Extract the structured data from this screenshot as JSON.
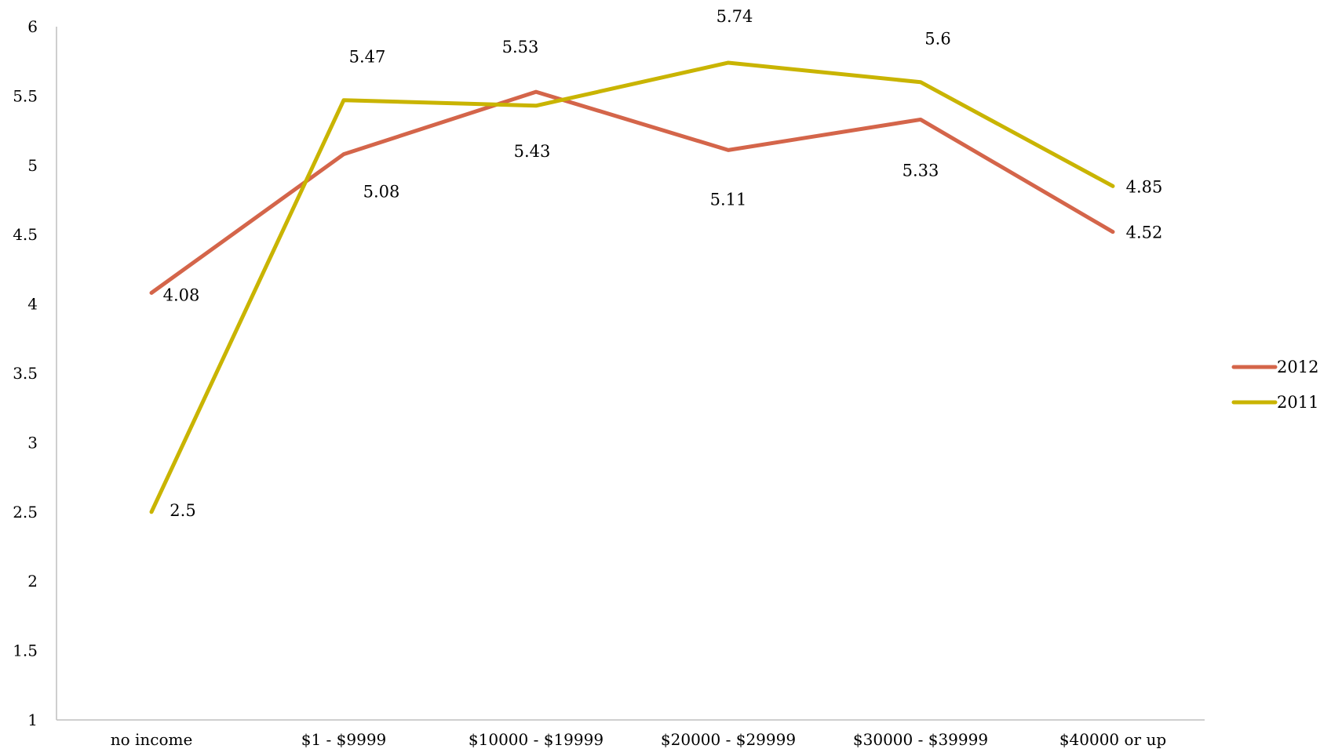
{
  "chart_data": {
    "type": "line",
    "title": "",
    "xlabel": "",
    "ylabel": "",
    "categories": [
      "no income",
      "$1 - $9999",
      "$10000 - $19999",
      "$20000 - $29999",
      "$30000 - $39999",
      "$40000 or up"
    ],
    "ylim": [
      1,
      6
    ],
    "yticks": [
      "1",
      "1.5",
      "2",
      "2.5",
      "3",
      "3.5",
      "4",
      "4.5",
      "5",
      "5.5",
      "6"
    ],
    "grid": false,
    "legend_position": "right",
    "series": [
      {
        "name": "2012",
        "color": "#d4654a",
        "values": [
          4.08,
          5.08,
          5.53,
          5.11,
          5.33,
          4.52
        ],
        "labels": [
          "4.08",
          "5.08",
          "5.53",
          "5.11",
          "5.33",
          "4.52"
        ]
      },
      {
        "name": "2011",
        "color": "#c9b400",
        "values": [
          2.5,
          5.47,
          5.43,
          5.74,
          5.6,
          4.85
        ],
        "labels": [
          "2.5",
          "5.47",
          "5.43",
          "5.74",
          "5.6",
          "4.85"
        ]
      }
    ]
  }
}
